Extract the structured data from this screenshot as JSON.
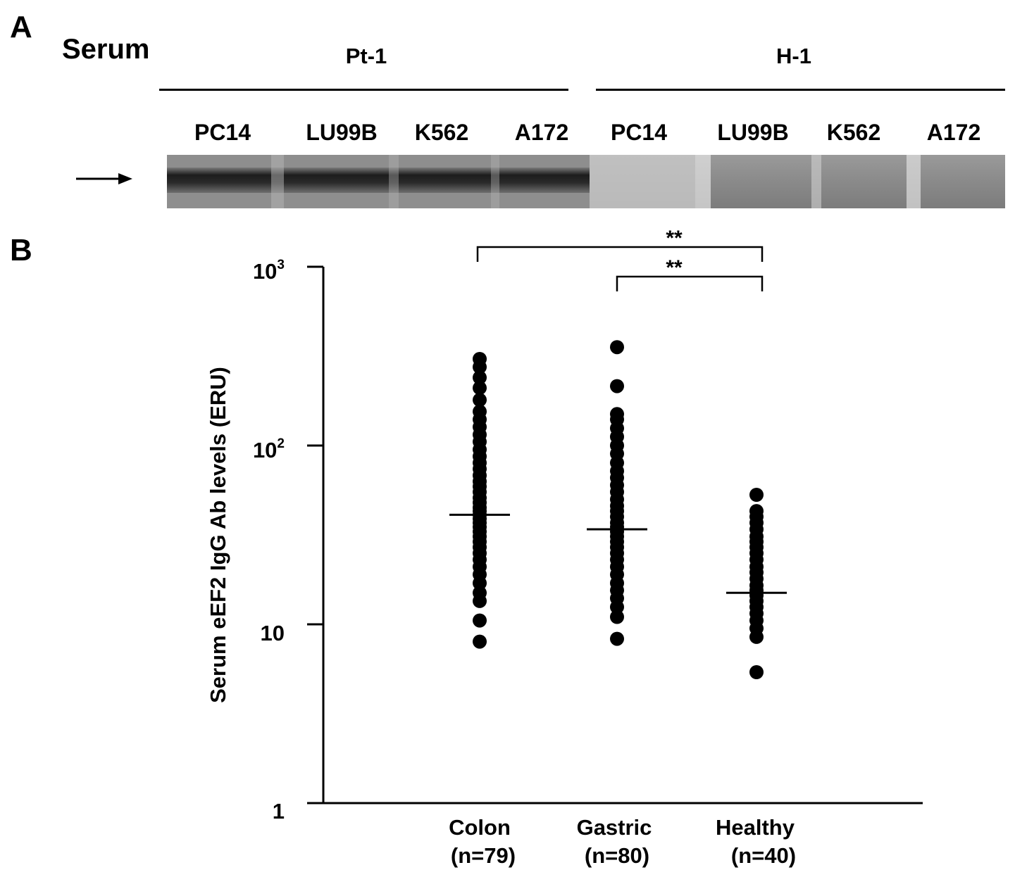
{
  "panel_a": {
    "label": "A",
    "row_label": "Serum",
    "groups": [
      {
        "name": "Pt-1",
        "lanes": [
          "PC14",
          "LU99B",
          "K562",
          "A172"
        ]
      },
      {
        "name": "H-1",
        "lanes": [
          "PC14",
          "LU99B",
          "K562",
          "A172"
        ]
      }
    ]
  },
  "chart_data": {
    "type": "scatter",
    "panel_label": "B",
    "ylabel": "Serum eEF2 IgG Ab levels (ERU)",
    "yscale": "log",
    "ylim": [
      1,
      1000
    ],
    "yticks": [
      {
        "value": 1,
        "label": "1",
        "exp": ""
      },
      {
        "value": 10,
        "label": "10",
        "exp": ""
      },
      {
        "value": 100,
        "label": "10",
        "exp": "2"
      },
      {
        "value": 1000,
        "label": "10",
        "exp": "3"
      }
    ],
    "categories": [
      {
        "name": "Colon",
        "n": "(n=79)"
      },
      {
        "name": "Gastric",
        "n": "(n=80)"
      },
      {
        "name": "Healthy",
        "n": "(n=40)"
      }
    ],
    "series": [
      {
        "category": "Colon",
        "median": 41,
        "values": [
          8,
          10.5,
          13.5,
          15,
          17,
          19,
          21,
          23,
          25,
          27,
          29,
          31,
          33,
          35,
          37,
          39,
          41,
          43,
          45,
          48,
          51,
          55,
          59,
          63,
          68,
          74,
          80,
          87,
          95,
          105,
          115,
          127,
          140,
          155,
          180,
          210,
          240,
          275,
          305
        ]
      },
      {
        "category": "Gastric",
        "median": 34,
        "values": [
          8.3,
          11,
          12.5,
          14,
          15.5,
          17,
          19,
          21,
          23,
          25,
          27,
          29,
          31,
          33,
          35,
          37,
          40,
          43,
          46,
          50,
          55,
          60,
          66,
          72,
          80,
          90,
          100,
          112,
          125,
          140,
          150,
          215,
          355
        ]
      },
      {
        "category": "Healthy",
        "median": 15,
        "values": [
          5.4,
          8.5,
          9.5,
          10.5,
          11.5,
          12.5,
          13.5,
          14.5,
          15.5,
          16.5,
          18,
          19.5,
          21,
          23,
          25,
          27,
          29,
          31,
          34,
          37,
          40,
          43,
          53
        ]
      }
    ],
    "significance": [
      {
        "from": "Colon",
        "to": "Healthy",
        "label": "**"
      },
      {
        "from": "Gastric",
        "to": "Healthy",
        "label": "**"
      }
    ],
    "grid": false,
    "legend": "none"
  },
  "colors": {
    "marker": "#000000",
    "blot_band": "#1a1a1a"
  }
}
